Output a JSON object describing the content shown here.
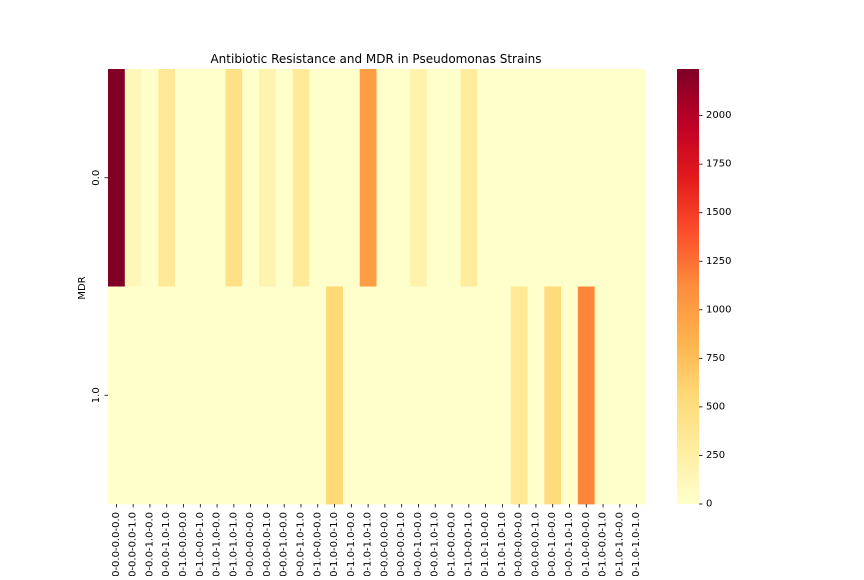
{
  "chart_data": {
    "type": "heatmap",
    "title": "Antibiotic Resistance and MDR in Pseudomonas Strains",
    "ylabel": "MDR",
    "xlabel": "",
    "rows": [
      "0.0",
      "1.0"
    ],
    "columns": [
      "0.0-0.0-0.0-0.0",
      "0.0-0.0-0.0-1.0",
      "0.0-0.0-1.0-0.0",
      "0.0-0.0-1.0-1.0",
      "0.0-1.0-0.0-0.0",
      "0.0-1.0-0.0-1.0",
      "0.0-1.0-1.0-0.0",
      "0.0-1.0-1.0-1.0",
      "1.0-0.0-0.0-0.0",
      "1.0-0.0-0.0-1.0",
      "1.0-0.0-1.0-0.0",
      "1.0-0.0-1.0-1.0",
      "1.0-1.0-0.0-0.0",
      "1.0-1.0-0.0-1.0",
      "1.0-1.0-1.0-0.0",
      "1.0-1.0-1.0-1.0",
      "0.0-0.0-0.0-0.0",
      "0.0-0.0-0.0-1.0",
      "0.0-0.0-1.0-0.0",
      "0.0-0.0-1.0-1.0",
      "0.0-1.0-0.0-0.0",
      "0.0-1.0-0.0-1.0",
      "0.0-1.0-1.0-0.0",
      "0.0-1.0-1.0-1.0",
      "1.0-0.0-0.0-0.0",
      "1.0-0.0-0.0-1.0",
      "1.0-0.0-1.0-0.0",
      "1.0-0.0-1.0-1.0",
      "1.0-1.0-0.0-0.0",
      "1.0-1.0-0.0-1.0",
      "1.0-1.0-1.0-0.0",
      "1.0-1.0-1.0-1.0"
    ],
    "values": [
      [
        2240,
        120,
        0,
        330,
        0,
        0,
        0,
        450,
        0,
        180,
        0,
        320,
        0,
        0,
        0,
        1000,
        0,
        0,
        200,
        0,
        0,
        300,
        0,
        0,
        0,
        0,
        0,
        0,
        0,
        0,
        0,
        0
      ],
      [
        0,
        0,
        0,
        0,
        0,
        0,
        0,
        0,
        0,
        0,
        0,
        0,
        0,
        560,
        0,
        0,
        0,
        0,
        0,
        0,
        0,
        0,
        0,
        0,
        350,
        0,
        520,
        0,
        1150,
        0,
        0,
        0
      ]
    ],
    "colorbar": {
      "min": 0,
      "max": 2240,
      "ticks": [
        0,
        250,
        500,
        750,
        1000,
        1250,
        1500,
        1750,
        2000
      ]
    },
    "colormap": "YlOrRd",
    "colormap_stops": [
      "#ffffcc",
      "#ffeda0",
      "#fed976",
      "#feb24c",
      "#fd8d3c",
      "#fc4e2a",
      "#e31a1c",
      "#bd0026",
      "#800026"
    ],
    "grid": false
  }
}
